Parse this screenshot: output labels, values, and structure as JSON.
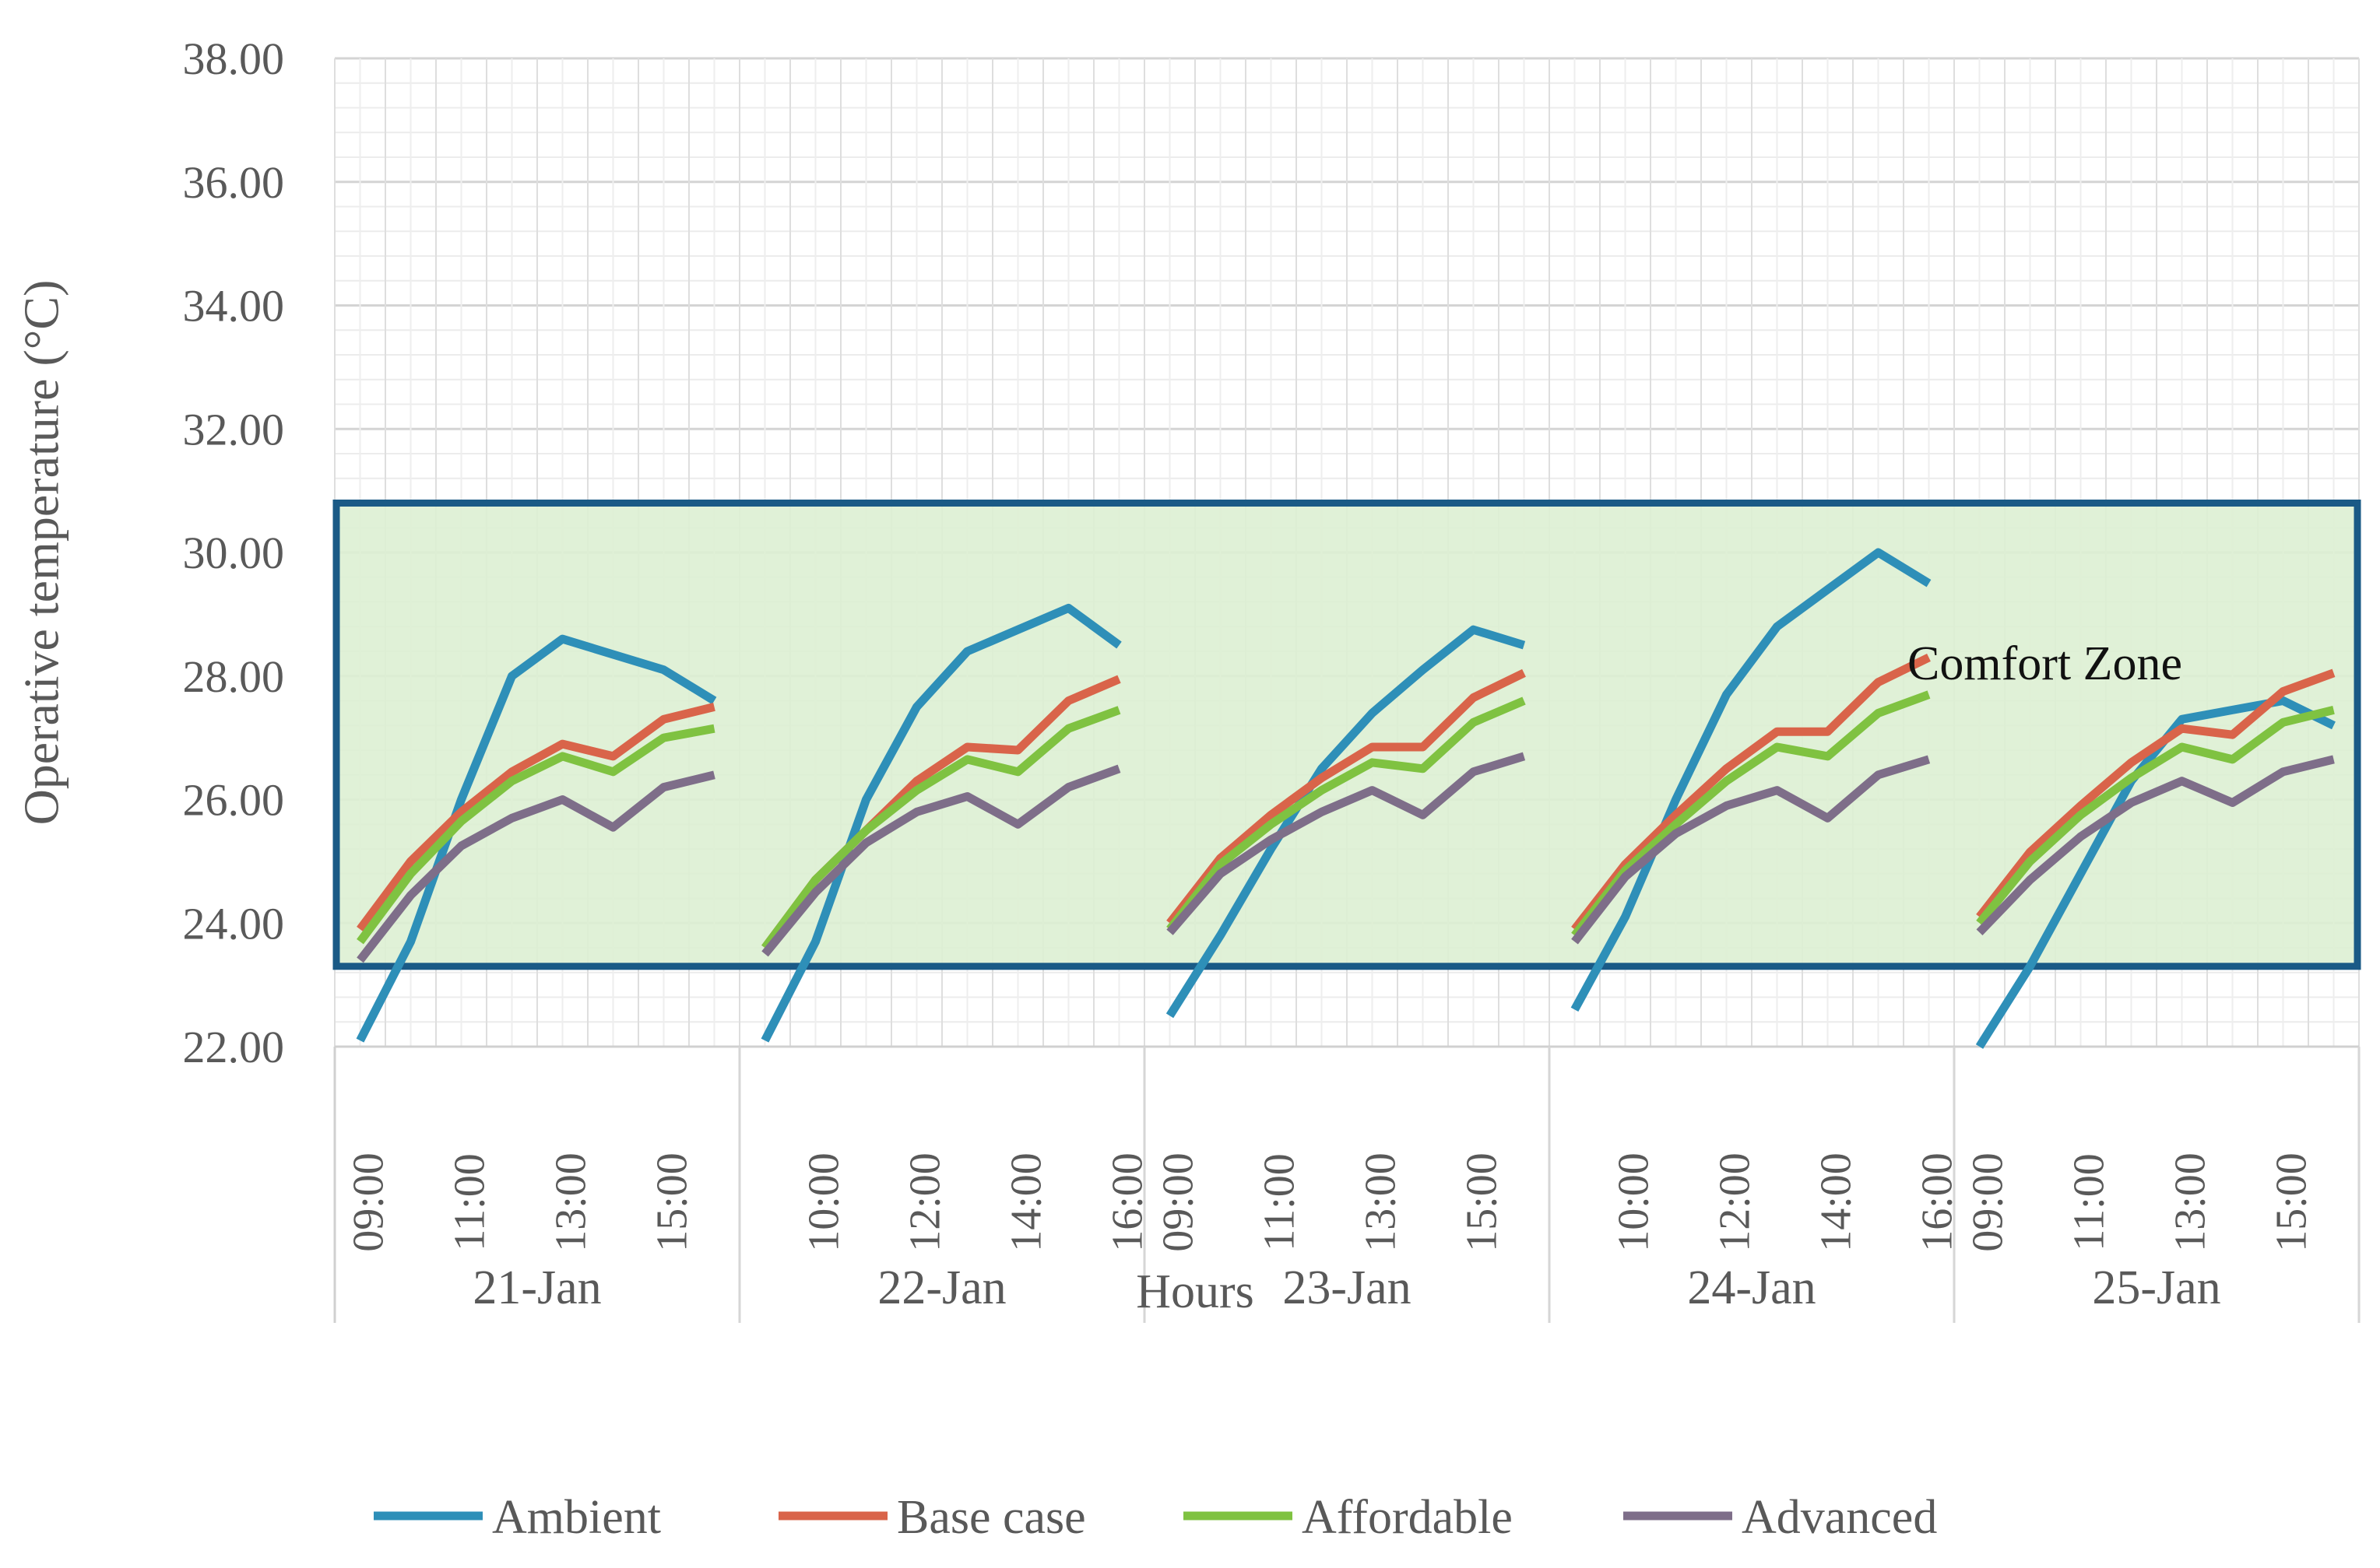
{
  "chart_data": {
    "type": "line",
    "title": "",
    "xlabel": "Hours",
    "ylabel": "Operative temperature (°C)",
    "ylim": [
      22,
      38
    ],
    "ytick_step": 2,
    "ytick_labels": [
      "22.00",
      "24.00",
      "26.00",
      "28.00",
      "30.00",
      "32.00",
      "34.00",
      "36.00",
      "38.00"
    ],
    "grid": true,
    "legend_position": "bottom",
    "colors": {
      "Ambient": "#2E8FB8",
      "Base case": "#D9644A",
      "Affordable": "#7FC241",
      "Advanced": "#7E6E89",
      "comfort_fill": "#DDF0D3",
      "comfort_border": "#1A5A86"
    },
    "annotation": {
      "text": "Comfort Zone",
      "ymin": 23.3,
      "ymax": 30.8
    },
    "groups": [
      {
        "label": "21-Jan",
        "hours": [
          "09:00",
          "10:00",
          "11:00",
          "12:00",
          "13:00",
          "14:00",
          "15:00",
          "16:00"
        ],
        "tick_labels": [
          "09:00",
          "11:00",
          "13:00",
          "15:00"
        ]
      },
      {
        "label": "22-Jan",
        "hours": [
          "09:00",
          "10:00",
          "11:00",
          "12:00",
          "13:00",
          "14:00",
          "15:00",
          "16:00"
        ],
        "tick_labels": [
          "10:00",
          "12:00",
          "14:00",
          "16:00"
        ]
      },
      {
        "label": "23-Jan",
        "hours": [
          "09:00",
          "10:00",
          "11:00",
          "12:00",
          "13:00",
          "14:00",
          "15:00",
          "16:00"
        ],
        "tick_labels": [
          "09:00",
          "11:00",
          "13:00",
          "15:00"
        ]
      },
      {
        "label": "24-Jan",
        "hours": [
          "09:00",
          "10:00",
          "11:00",
          "12:00",
          "13:00",
          "14:00",
          "15:00",
          "16:00"
        ],
        "tick_labels": [
          "10:00",
          "12:00",
          "14:00",
          "16:00"
        ]
      },
      {
        "label": "25-Jan",
        "hours": [
          "09:00",
          "10:00",
          "11:00",
          "12:00",
          "13:00",
          "14:00",
          "15:00",
          "16:00"
        ],
        "tick_labels": [
          "09:00",
          "11:00",
          "13:00",
          "15:00"
        ]
      }
    ],
    "series": [
      {
        "name": "Ambient",
        "values": [
          [
            22.1,
            23.7,
            26.0,
            28.0,
            28.6,
            28.35,
            28.1,
            27.6
          ],
          [
            22.1,
            23.7,
            26.0,
            27.5,
            28.4,
            28.75,
            29.1,
            28.5
          ],
          [
            22.5,
            23.8,
            25.2,
            26.5,
            27.4,
            28.1,
            28.75,
            28.5
          ],
          [
            22.6,
            24.1,
            26.0,
            27.7,
            28.8,
            29.4,
            30.0,
            29.5
          ],
          [
            22.0,
            23.3,
            24.8,
            26.3,
            27.3,
            27.45,
            27.6,
            27.2
          ]
        ]
      },
      {
        "name": "Base case",
        "values": [
          [
            23.9,
            25.0,
            25.8,
            26.45,
            26.9,
            26.7,
            27.3,
            27.5
          ],
          [
            23.6,
            24.7,
            25.5,
            26.3,
            26.85,
            26.8,
            27.6,
            27.95
          ],
          [
            24.0,
            25.05,
            25.75,
            26.35,
            26.85,
            26.85,
            27.65,
            28.05
          ],
          [
            23.9,
            24.95,
            25.75,
            26.5,
            27.1,
            27.1,
            27.9,
            28.3
          ],
          [
            24.1,
            25.15,
            25.9,
            26.6,
            27.15,
            27.05,
            27.75,
            28.05
          ]
        ]
      },
      {
        "name": "Affordable",
        "values": [
          [
            23.7,
            24.8,
            25.65,
            26.3,
            26.7,
            26.45,
            27.0,
            27.15
          ],
          [
            23.6,
            24.7,
            25.5,
            26.15,
            26.65,
            26.45,
            27.15,
            27.45
          ],
          [
            23.9,
            24.95,
            25.6,
            26.15,
            26.6,
            26.5,
            27.25,
            27.6
          ],
          [
            23.8,
            24.85,
            25.6,
            26.3,
            26.85,
            26.7,
            27.4,
            27.7
          ],
          [
            24.0,
            25.0,
            25.75,
            26.35,
            26.85,
            26.65,
            27.25,
            27.45
          ]
        ]
      },
      {
        "name": "Advanced",
        "values": [
          [
            23.4,
            24.45,
            25.25,
            25.7,
            26.0,
            25.55,
            26.2,
            26.4
          ],
          [
            23.5,
            24.5,
            25.3,
            25.8,
            26.05,
            25.6,
            26.2,
            26.5
          ],
          [
            23.85,
            24.8,
            25.35,
            25.8,
            26.15,
            25.75,
            26.45,
            26.7
          ],
          [
            23.7,
            24.75,
            25.45,
            25.9,
            26.15,
            25.7,
            26.4,
            26.65
          ],
          [
            23.85,
            24.7,
            25.4,
            25.95,
            26.3,
            25.95,
            26.45,
            26.65
          ]
        ]
      }
    ]
  }
}
